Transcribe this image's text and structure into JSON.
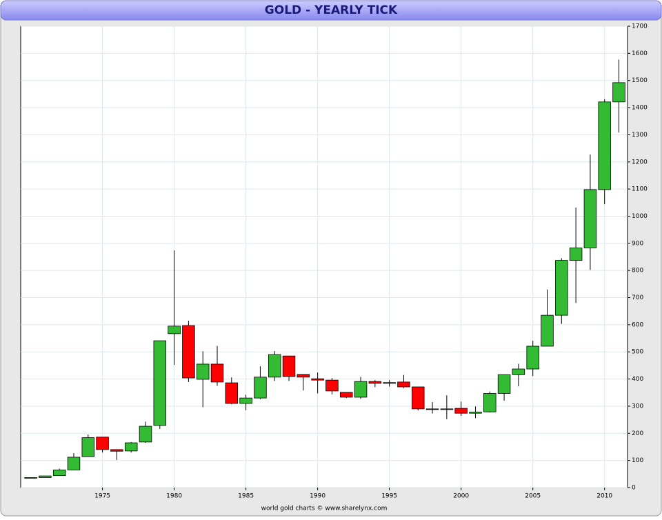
{
  "chart_data": {
    "type": "candlestick",
    "title": "GOLD - YEARLY TICK",
    "footer": "world gold charts © www.sharelynx.com",
    "x": [
      1970,
      1971,
      1972,
      1973,
      1974,
      1975,
      1976,
      1977,
      1978,
      1979,
      1980,
      1981,
      1982,
      1983,
      1984,
      1985,
      1986,
      1987,
      1988,
      1989,
      1990,
      1991,
      1992,
      1993,
      1994,
      1995,
      1996,
      1997,
      1998,
      1999,
      2000,
      2001,
      2002,
      2003,
      2004,
      2005,
      2006,
      2007,
      2008,
      2009,
      2010,
      2011
    ],
    "open": [
      35,
      37,
      44,
      65,
      114,
      186,
      140,
      135,
      168,
      229,
      567,
      597,
      399,
      455,
      386,
      310,
      330,
      407,
      485,
      417,
      401,
      396,
      351,
      333,
      391,
      384,
      389,
      371,
      290,
      288,
      292,
      274,
      279,
      347,
      416,
      437,
      521,
      635,
      837,
      883,
      1098,
      1421
    ],
    "high": [
      37,
      44,
      70,
      127,
      196,
      186,
      140,
      168,
      243,
      541,
      874,
      615,
      502,
      522,
      406,
      342,
      447,
      503,
      485,
      417,
      424,
      404,
      351,
      408,
      396,
      396,
      415,
      370,
      315,
      340,
      317,
      299,
      354,
      417,
      456,
      541,
      730,
      845,
      1032,
      1227,
      1431,
      1577
    ],
    "low": [
      35,
      37,
      44,
      65,
      114,
      129,
      102,
      129,
      165,
      216,
      452,
      389,
      296,
      375,
      307,
      285,
      326,
      393,
      393,
      358,
      347,
      343,
      330,
      327,
      370,
      372,
      367,
      284,
      273,
      252,
      264,
      256,
      277,
      320,
      373,
      411,
      524,
      603,
      680,
      802,
      1044,
      1308
    ],
    "close": [
      37,
      43,
      65,
      112,
      184,
      140,
      134,
      165,
      226,
      541,
      595,
      404,
      455,
      389,
      310,
      330,
      407,
      490,
      409,
      407,
      396,
      356,
      333,
      391,
      384,
      387,
      371,
      290,
      288,
      290,
      274,
      278,
      347,
      416,
      437,
      521,
      635,
      837,
      883,
      1098,
      1421,
      1492
    ],
    "up_color": "#33bb33",
    "down_color": "#ff0000",
    "xlim": [
      1969.3,
      2011.6
    ],
    "xticks": [
      1975,
      1980,
      1985,
      1990,
      1995,
      2000,
      2005,
      2010
    ],
    "ylim": [
      0,
      1700
    ],
    "yticks": [
      0,
      100,
      200,
      300,
      400,
      500,
      600,
      700,
      800,
      900,
      1000,
      1100,
      1200,
      1300,
      1400,
      1500,
      1600,
      1700
    ],
    "grid": true
  }
}
